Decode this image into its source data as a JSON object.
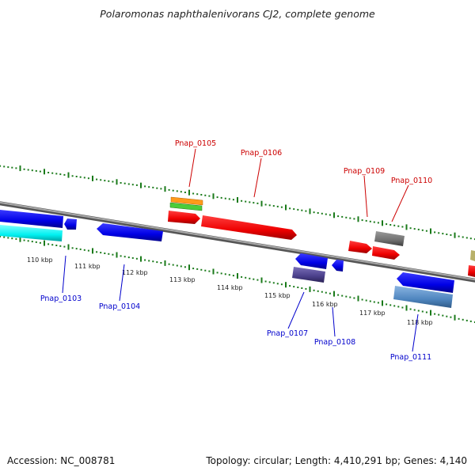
{
  "title": "Polaromonas naphthalenivorans CJ2, complete genome",
  "accession": "Accession: NC_008781",
  "summary": "Topology: circular; Length: 4,410,291 bp; Genes: 4,140",
  "colors": {
    "forward_label": "#cc0000",
    "reverse_label": "#0000cc",
    "backbone": "#8a8a8a",
    "tick": "#1a7a1a"
  },
  "kbp_labels": [
    "110 kbp",
    "111 kbp",
    "112 kbp",
    "113 kbp",
    "114 kbp",
    "115 kbp",
    "116 kbp",
    "117 kbp",
    "118 kbp"
  ],
  "gene_labels": {
    "forward": [
      "Pnap_0105",
      "Pnap_0106",
      "Pnap_0109",
      "Pnap_0110"
    ],
    "reverse": [
      "Pnap_0103",
      "Pnap_0104",
      "Pnap_0107",
      "Pnap_0108",
      "Pnap_0111"
    ]
  },
  "feature_colors": [
    "blue",
    "cyan",
    "orange",
    "green",
    "red",
    "gray",
    "dark-slate-blue",
    "steel-blue",
    "khaki"
  ]
}
